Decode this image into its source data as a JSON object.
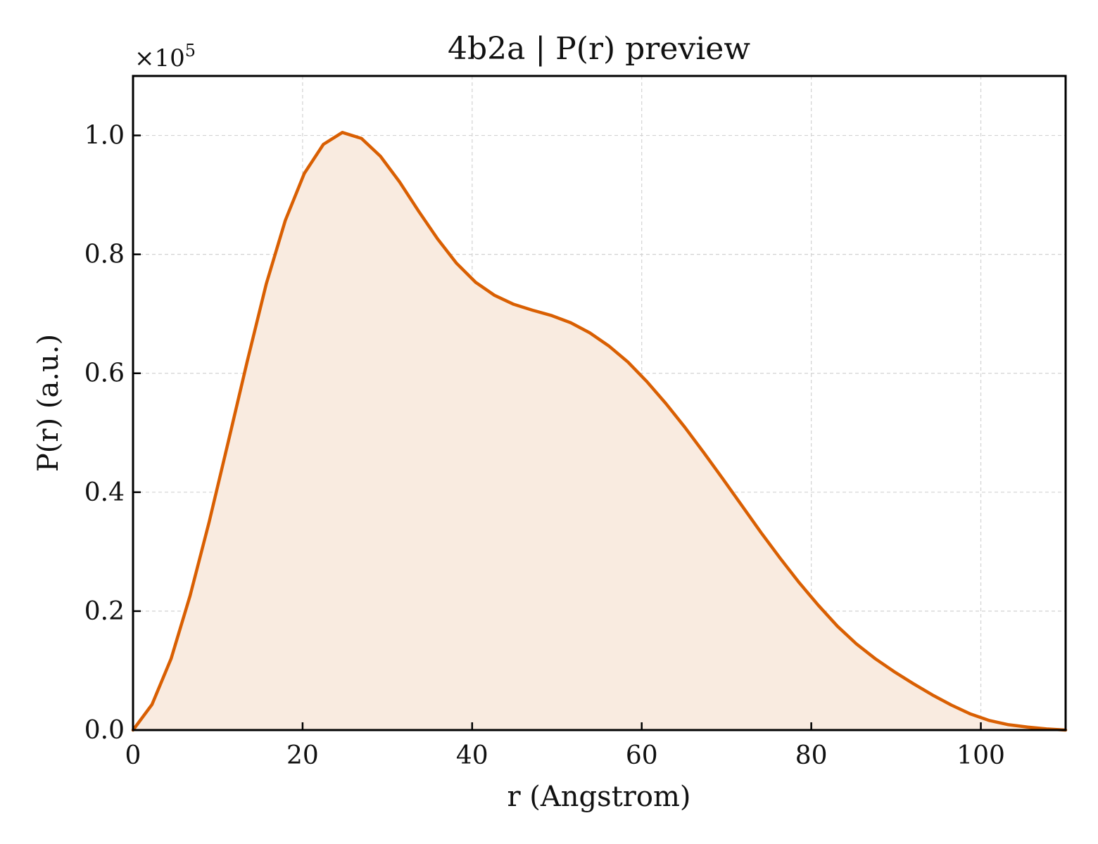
{
  "chart_data": {
    "type": "area",
    "title": "4b2a | P(r) preview",
    "xlabel": "r (Angstrom)",
    "ylabel": "P(r) (a.u.)",
    "y_multiplier_label": "×10",
    "y_multiplier_exponent": "5",
    "xlim": [
      0,
      110
    ],
    "ylim": [
      0,
      1.1
    ],
    "x_ticks": [
      0,
      20,
      40,
      60,
      80,
      100
    ],
    "x_tick_labels": [
      "0",
      "20",
      "40",
      "60",
      "80",
      "100"
    ],
    "y_ticks": [
      0.0,
      0.2,
      0.4,
      0.6,
      0.8,
      1.0
    ],
    "y_tick_labels": [
      "0.0",
      "0.2",
      "0.4",
      "0.6",
      "0.8",
      "1.0"
    ],
    "grid": true,
    "grid_style": "dashed",
    "series": [
      {
        "line_color": "#d95f02",
        "fill_color": "#f9ebe0",
        "x": [
          0,
          2.24,
          4.49,
          6.73,
          8.98,
          11.22,
          13.47,
          15.71,
          17.96,
          20.2,
          22.45,
          24.69,
          26.94,
          29.18,
          31.43,
          33.67,
          35.92,
          38.16,
          40.41,
          42.65,
          44.9,
          47.14,
          49.39,
          51.63,
          53.88,
          56.12,
          58.37,
          60.61,
          62.86,
          65.1,
          67.35,
          69.59,
          71.84,
          74.08,
          76.33,
          78.57,
          80.82,
          83.06,
          85.31,
          87.55,
          89.8,
          92.04,
          94.29,
          96.53,
          98.78,
          101.02,
          103.27,
          105.51,
          107.76,
          110
        ],
        "y": [
          0.0,
          0.043,
          0.12,
          0.226,
          0.35,
          0.484,
          0.62,
          0.75,
          0.857,
          0.936,
          0.985,
          1.005,
          0.995,
          0.965,
          0.922,
          0.873,
          0.826,
          0.785,
          0.753,
          0.731,
          0.716,
          0.706,
          0.697,
          0.685,
          0.668,
          0.646,
          0.619,
          0.586,
          0.549,
          0.509,
          0.466,
          0.422,
          0.377,
          0.332,
          0.289,
          0.248,
          0.21,
          0.175,
          0.145,
          0.12,
          0.098,
          0.078,
          0.059,
          0.042,
          0.027,
          0.016,
          0.009,
          0.005,
          0.002,
          0.0
        ]
      }
    ]
  }
}
